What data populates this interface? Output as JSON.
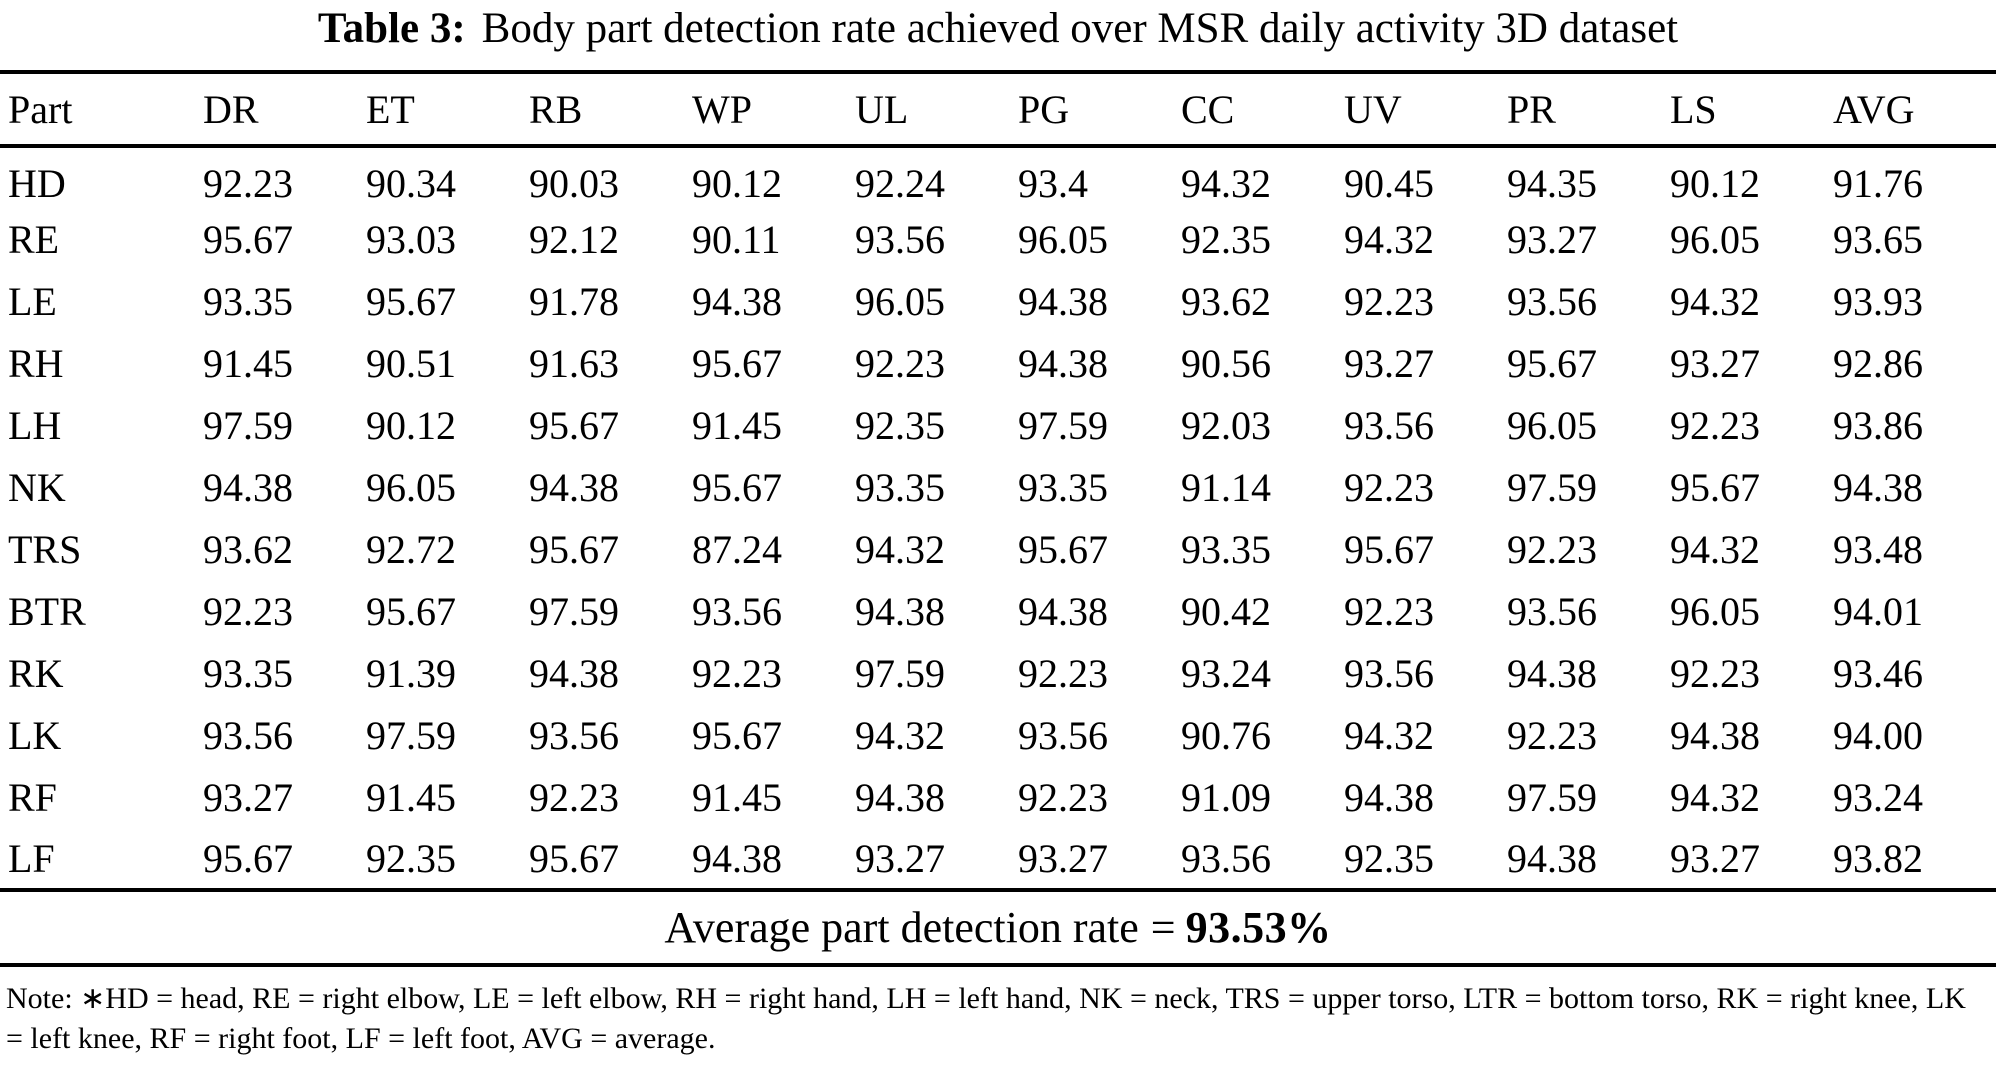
{
  "caption": {
    "label": "Table 3:",
    "text": "Body part detection rate achieved over MSR daily activity 3D dataset"
  },
  "table": {
    "columns": [
      "Part",
      "DR",
      "ET",
      "RB",
      "WP",
      "UL",
      "PG",
      "CC",
      "UV",
      "PR",
      "LS",
      "AVG"
    ],
    "rows": [
      {
        "part": "HD",
        "values": [
          "92.23",
          "90.34",
          "90.03",
          "90.12",
          "92.24",
          "93.4",
          "94.32",
          "90.45",
          "94.35",
          "90.12",
          "91.76"
        ]
      },
      {
        "part": "RE",
        "values": [
          "95.67",
          "93.03",
          "92.12",
          "90.11",
          "93.56",
          "96.05",
          "92.35",
          "94.32",
          "93.27",
          "96.05",
          "93.65"
        ]
      },
      {
        "part": "LE",
        "values": [
          "93.35",
          "95.67",
          "91.78",
          "94.38",
          "96.05",
          "94.38",
          "93.62",
          "92.23",
          "93.56",
          "94.32",
          "93.93"
        ]
      },
      {
        "part": "RH",
        "values": [
          "91.45",
          "90.51",
          "91.63",
          "95.67",
          "92.23",
          "94.38",
          "90.56",
          "93.27",
          "95.67",
          "93.27",
          "92.86"
        ]
      },
      {
        "part": "LH",
        "values": [
          "97.59",
          "90.12",
          "95.67",
          "91.45",
          "92.35",
          "97.59",
          "92.03",
          "93.56",
          "96.05",
          "92.23",
          "93.86"
        ]
      },
      {
        "part": "NK",
        "values": [
          "94.38",
          "96.05",
          "94.38",
          "95.67",
          "93.35",
          "93.35",
          "91.14",
          "92.23",
          "97.59",
          "95.67",
          "94.38"
        ]
      },
      {
        "part": "TRS",
        "values": [
          "93.62",
          "92.72",
          "95.67",
          "87.24",
          "94.32",
          "95.67",
          "93.35",
          "95.67",
          "92.23",
          "94.32",
          "93.48"
        ]
      },
      {
        "part": "BTR",
        "values": [
          "92.23",
          "95.67",
          "97.59",
          "93.56",
          "94.38",
          "94.38",
          "90.42",
          "92.23",
          "93.56",
          "96.05",
          "94.01"
        ]
      },
      {
        "part": "RK",
        "values": [
          "93.35",
          "91.39",
          "94.38",
          "92.23",
          "97.59",
          "92.23",
          "93.24",
          "93.56",
          "94.38",
          "92.23",
          "93.46"
        ]
      },
      {
        "part": "LK",
        "values": [
          "93.56",
          "97.59",
          "93.56",
          "95.67",
          "94.32",
          "93.56",
          "90.76",
          "94.32",
          "92.23",
          "94.38",
          "94.00"
        ]
      },
      {
        "part": "RF",
        "values": [
          "93.27",
          "91.45",
          "92.23",
          "91.45",
          "94.38",
          "92.23",
          "91.09",
          "94.38",
          "97.59",
          "94.32",
          "93.24"
        ]
      },
      {
        "part": "LF",
        "values": [
          "95.67",
          "92.35",
          "95.67",
          "94.38",
          "93.27",
          "93.27",
          "93.56",
          "92.35",
          "94.38",
          "93.27",
          "93.82"
        ]
      }
    ]
  },
  "summary": {
    "label": "Average part detection rate",
    "separator": "=",
    "value": "93.53%"
  },
  "note": "Note: ∗HD = head, RE = right elbow, LE = left elbow, RH = right hand, LH = left hand, NK = neck, TRS = upper torso, LTR = bottom torso, RK = right knee, LK = left knee, RF = right foot, LF = left foot, AVG = average.",
  "chart_data": {
    "type": "table",
    "title": "Table 3: Body part detection rate achieved over MSR daily activity 3D dataset",
    "columns": [
      "Part",
      "DR",
      "ET",
      "RB",
      "WP",
      "UL",
      "PG",
      "CC",
      "UV",
      "PR",
      "LS",
      "AVG"
    ],
    "rows": [
      [
        "HD",
        92.23,
        90.34,
        90.03,
        90.12,
        92.24,
        93.4,
        94.32,
        90.45,
        94.35,
        90.12,
        91.76
      ],
      [
        "RE",
        95.67,
        93.03,
        92.12,
        90.11,
        93.56,
        96.05,
        92.35,
        94.32,
        93.27,
        96.05,
        93.65
      ],
      [
        "LE",
        93.35,
        95.67,
        91.78,
        94.38,
        96.05,
        94.38,
        93.62,
        92.23,
        93.56,
        94.32,
        93.93
      ],
      [
        "RH",
        91.45,
        90.51,
        91.63,
        95.67,
        92.23,
        94.38,
        90.56,
        93.27,
        95.67,
        93.27,
        92.86
      ],
      [
        "LH",
        97.59,
        90.12,
        95.67,
        91.45,
        92.35,
        97.59,
        92.03,
        93.56,
        96.05,
        92.23,
        93.86
      ],
      [
        "NK",
        94.38,
        96.05,
        94.38,
        95.67,
        93.35,
        93.35,
        91.14,
        92.23,
        97.59,
        95.67,
        94.38
      ],
      [
        "TRS",
        93.62,
        92.72,
        95.67,
        87.24,
        94.32,
        95.67,
        93.35,
        95.67,
        92.23,
        94.32,
        93.48
      ],
      [
        "BTR",
        92.23,
        95.67,
        97.59,
        93.56,
        94.38,
        94.38,
        90.42,
        92.23,
        93.56,
        96.05,
        94.01
      ],
      [
        "RK",
        93.35,
        91.39,
        94.38,
        92.23,
        97.59,
        92.23,
        93.24,
        93.56,
        94.38,
        92.23,
        93.46
      ],
      [
        "LK",
        93.56,
        97.59,
        93.56,
        95.67,
        94.32,
        93.56,
        90.76,
        94.32,
        92.23,
        94.38,
        94.0
      ],
      [
        "RF",
        93.27,
        91.45,
        92.23,
        91.45,
        94.38,
        92.23,
        91.09,
        94.38,
        97.59,
        94.32,
        93.24
      ],
      [
        "LF",
        95.67,
        92.35,
        95.67,
        94.38,
        93.27,
        93.27,
        93.56,
        92.35,
        94.38,
        93.27,
        93.82
      ]
    ],
    "average_part_detection_rate": 93.53
  }
}
